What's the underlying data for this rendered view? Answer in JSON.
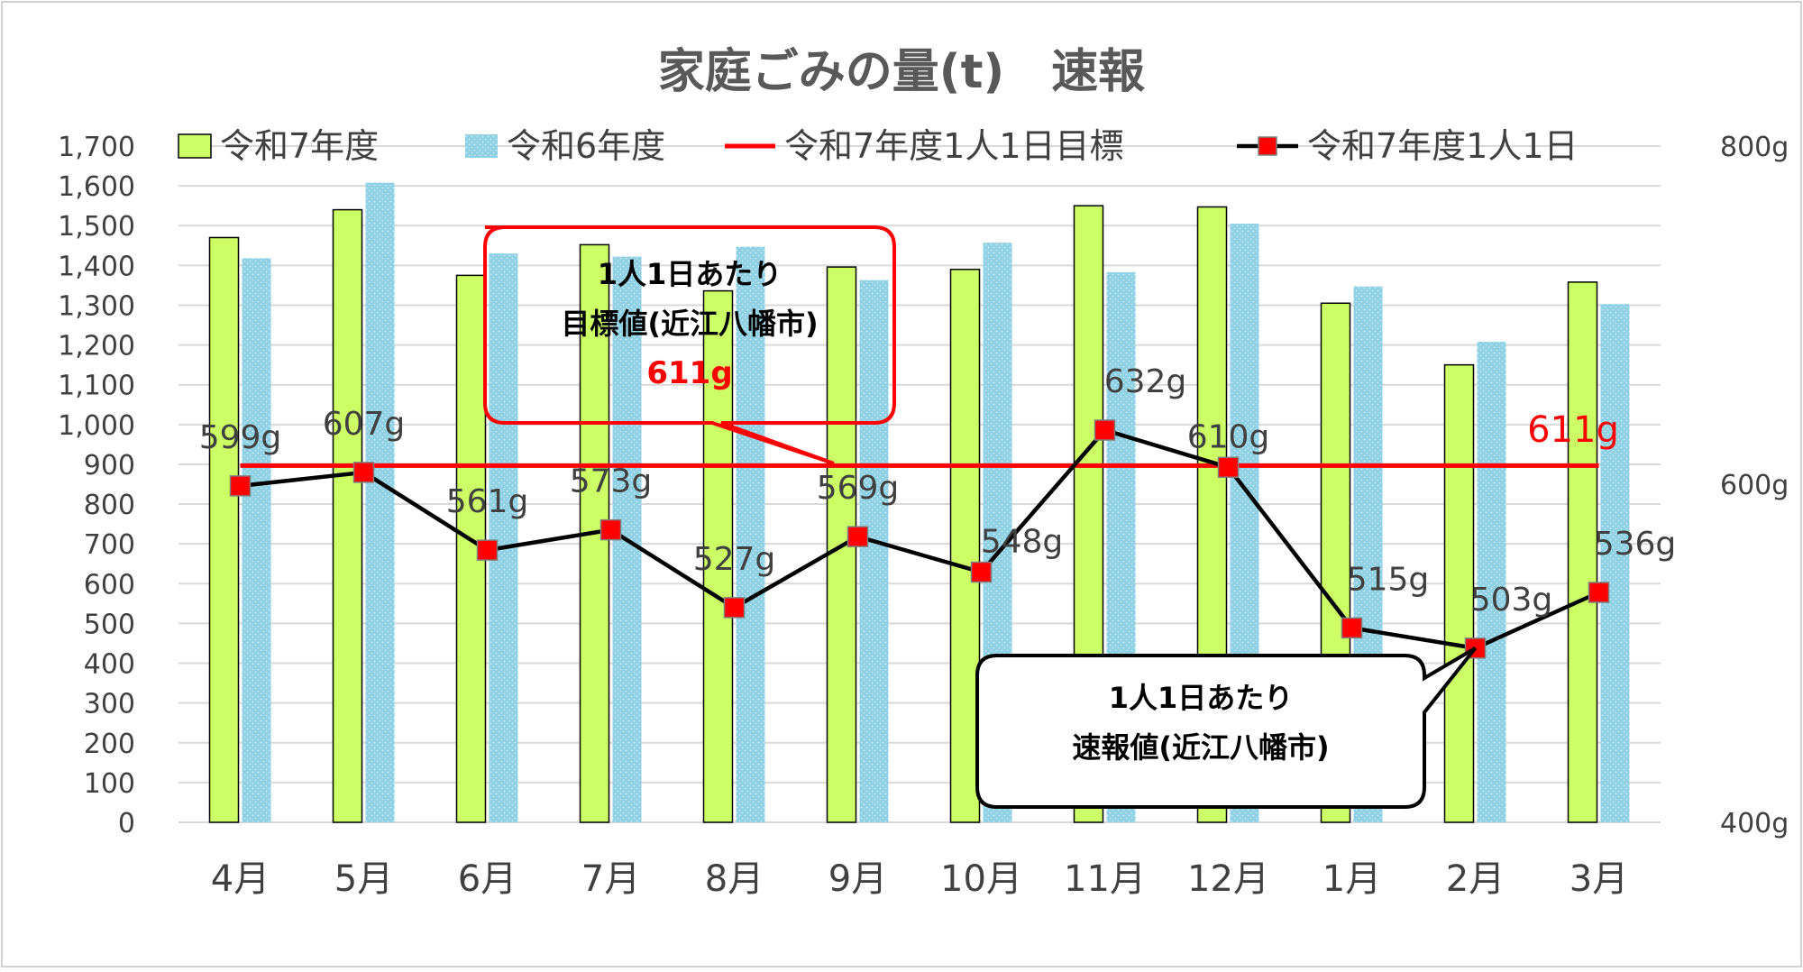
{
  "chart_data": {
    "type": "bar",
    "title": "家庭ごみの量(t)　速報",
    "categories": [
      "4月",
      "5月",
      "6月",
      "7月",
      "8月",
      "9月",
      "10月",
      "11月",
      "12月",
      "1月",
      "2月",
      "3月"
    ],
    "series": [
      {
        "name": "令和7年度",
        "kind": "bar",
        "axis": "left",
        "color": "#ccff66",
        "values": [
          1470,
          1540,
          1375,
          1452,
          1336,
          1396,
          1390,
          1550,
          1547,
          1305,
          1150,
          1358
        ]
      },
      {
        "name": "令和6年度",
        "kind": "bar",
        "axis": "left",
        "color": "#8ed1e4",
        "values": [
          1418,
          1608,
          1430,
          1422,
          1447,
          1363,
          1457,
          1383,
          1505,
          1347,
          1208,
          1303
        ]
      },
      {
        "name": "令和7年度1人1日目標",
        "kind": "line",
        "axis": "right",
        "color": "#ff0000",
        "values": [
          611,
          611,
          611,
          611,
          611,
          611,
          611,
          611,
          611,
          611,
          611,
          611
        ],
        "end_label": "611g"
      },
      {
        "name": "令和7年度1人1日",
        "kind": "line-markers",
        "axis": "right",
        "color": "#000000",
        "marker_color": "#ff0000",
        "values": [
          599,
          607,
          561,
          573,
          527,
          569,
          548,
          632,
          610,
          515,
          503,
          536
        ],
        "labels": [
          "599g",
          "607g",
          "561g",
          "573g",
          "527g",
          "569g",
          "548g",
          "632g",
          "610g",
          "515g",
          "503g",
          "536g"
        ]
      }
    ],
    "y_left": {
      "min": 0,
      "max": 1700,
      "step": 100,
      "tick_labels": [
        "0",
        "100",
        "200",
        "300",
        "400",
        "500",
        "600",
        "700",
        "800",
        "900",
        "1,000",
        "1,100",
        "1,200",
        "1,300",
        "1,400",
        "1,500",
        "1,600",
        "1,700"
      ]
    },
    "y_right": {
      "min": 400,
      "max": 800,
      "ticks": [
        400,
        600,
        800
      ],
      "tick_labels": [
        "400g",
        "600g",
        "800g"
      ]
    },
    "grid": true,
    "legend": "top",
    "annotations": [
      {
        "lines": [
          "1人1日あたり",
          "目標値(近江八幡市)"
        ],
        "value": "611g",
        "color": "#ff0000",
        "points_to": "target"
      },
      {
        "lines": [
          "1人1日あたり",
          "速報値(近江八幡市)"
        ],
        "color": "#000000",
        "points_to": "2月"
      }
    ]
  }
}
